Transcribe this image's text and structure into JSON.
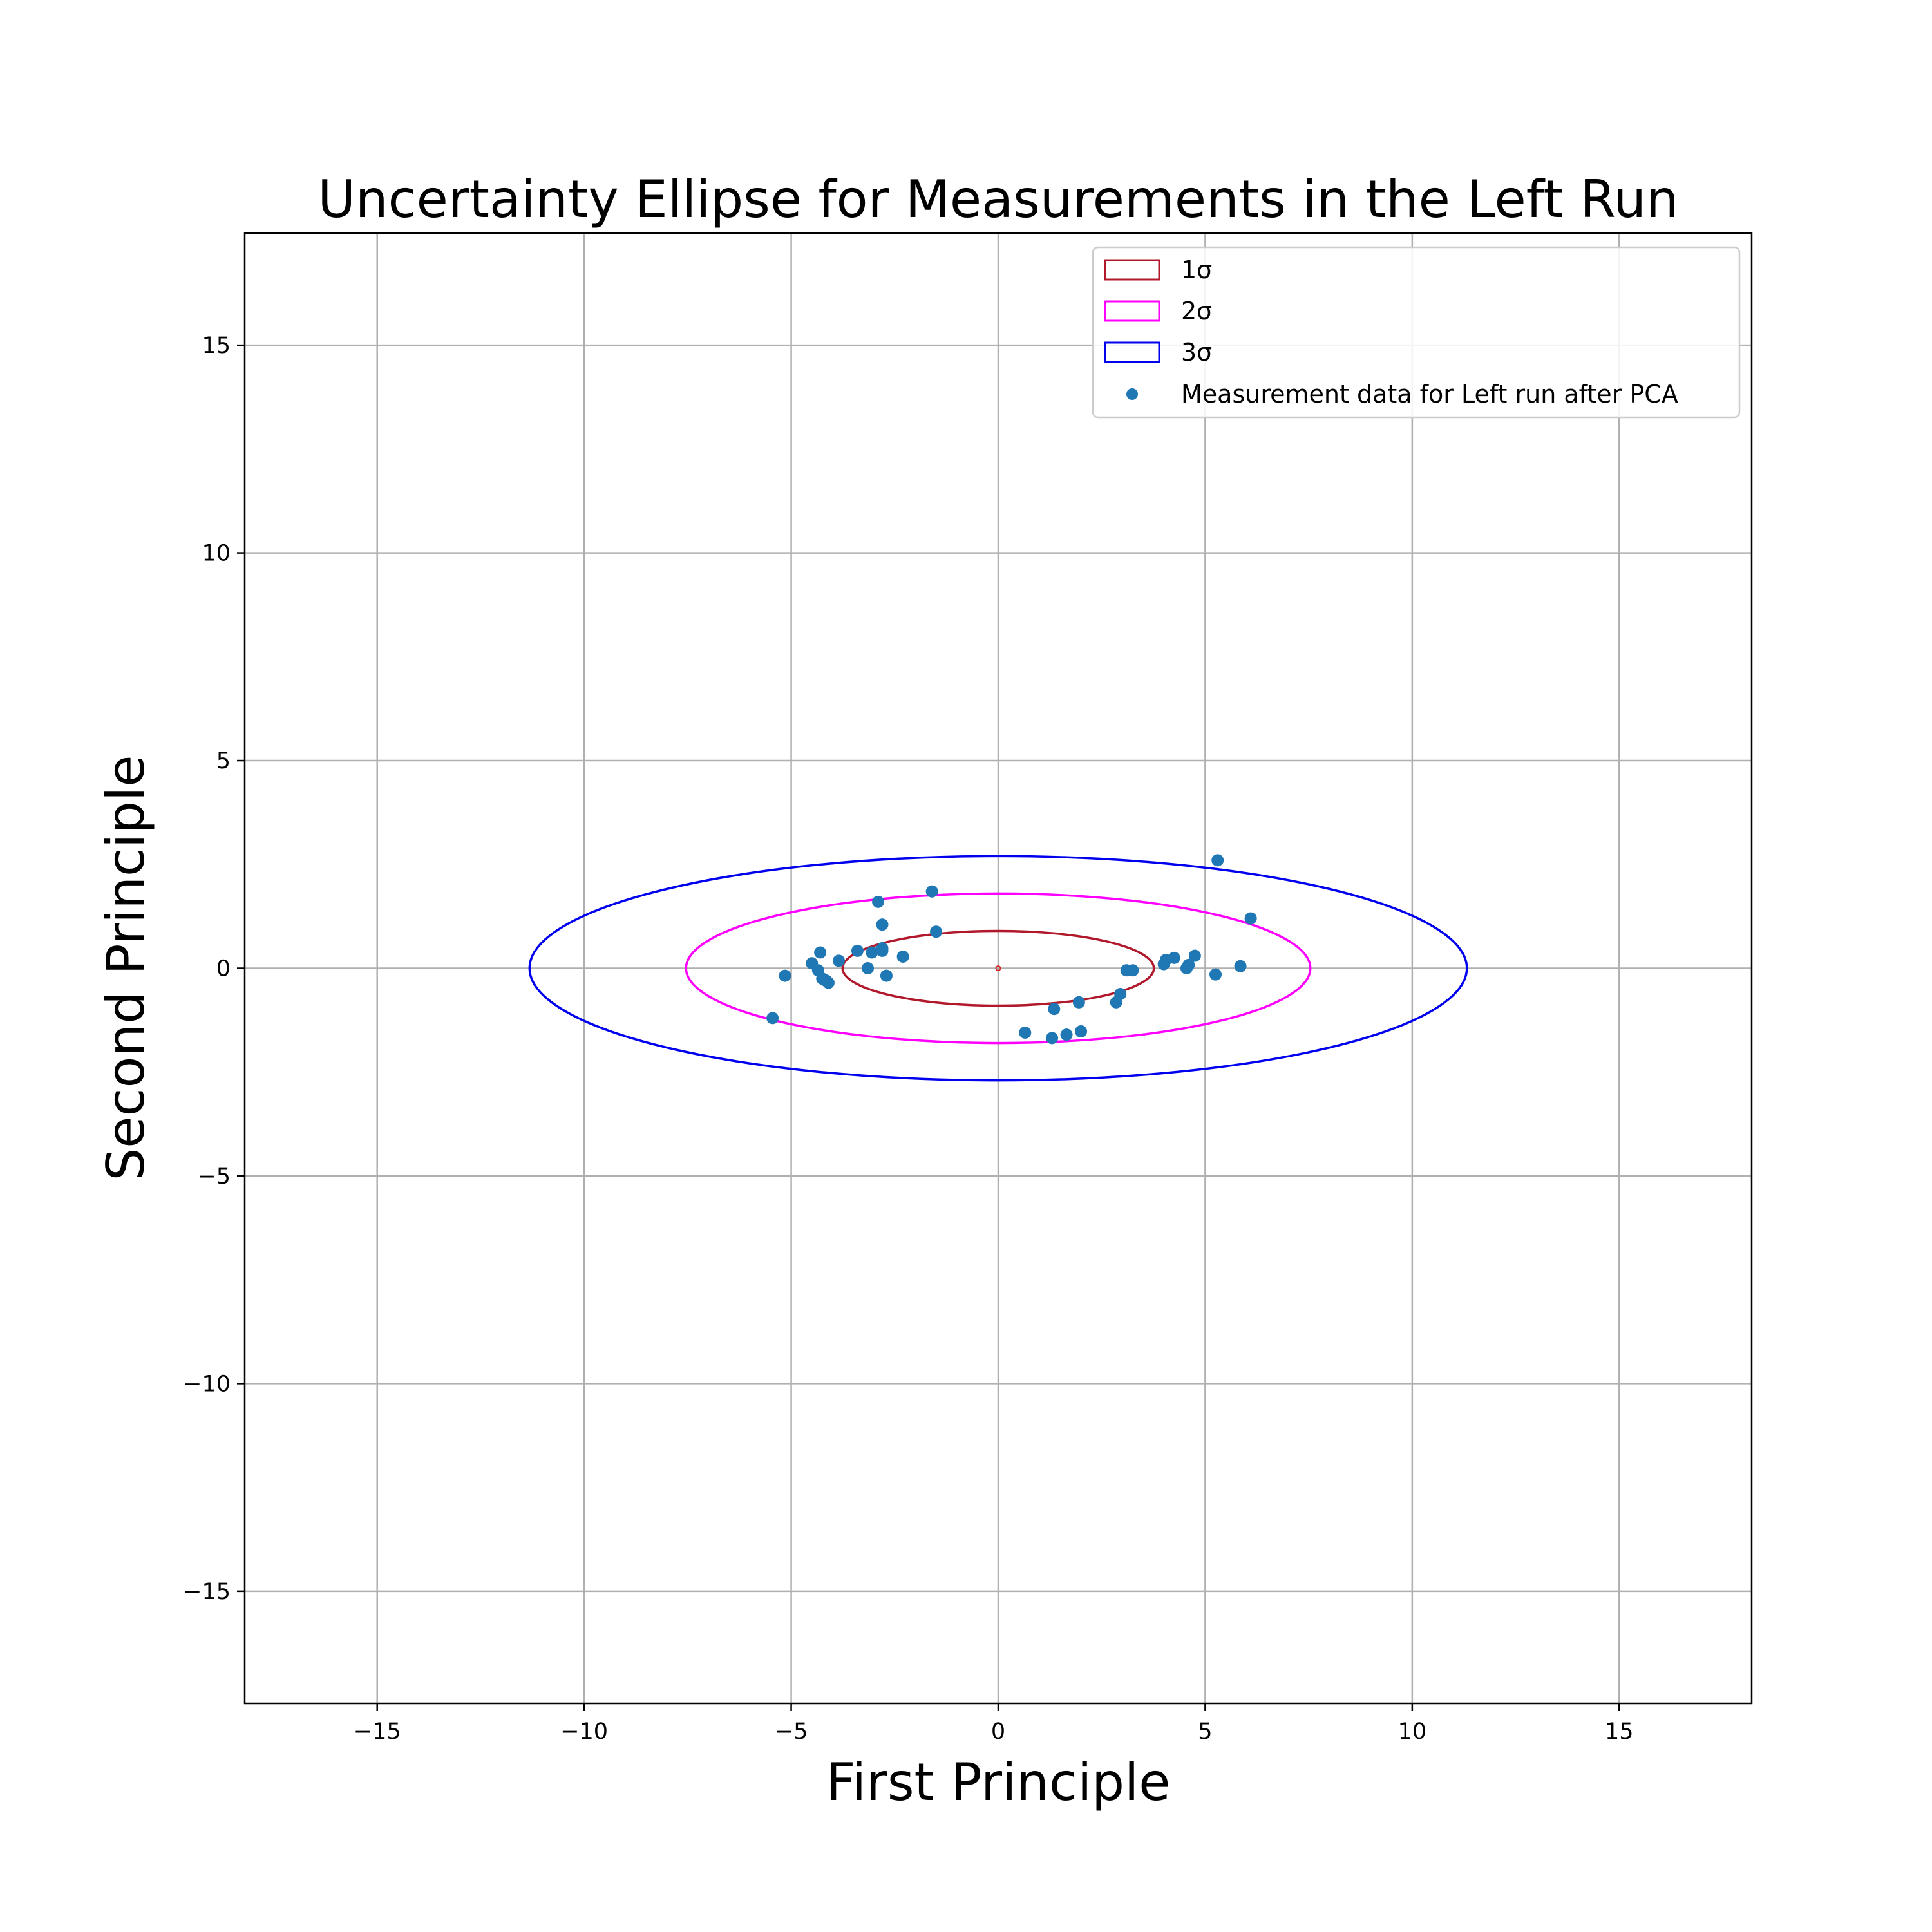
{
  "chart_data": {
    "type": "scatter",
    "title": "Uncertainty Ellipse for Measurements in the Left Run",
    "xlabel": "First Principle",
    "ylabel": "Second Principle",
    "xlim": [
      -18.2,
      18.2
    ],
    "ylim": [
      -17.7,
      17.7
    ],
    "x_ticks": [
      -15,
      -10,
      -5,
      0,
      5,
      10,
      15
    ],
    "y_ticks": [
      -15,
      -10,
      -5,
      0,
      5,
      10,
      15
    ],
    "x_tick_labels": [
      "−15",
      "−10",
      "−5",
      "0",
      "5",
      "10",
      "15"
    ],
    "y_tick_labels": [
      "−15",
      "−10",
      "−5",
      "0",
      "5",
      "10",
      "15"
    ],
    "grid": true,
    "legend_position": "upper right",
    "ellipses": [
      {
        "label": "1σ",
        "center": [
          0,
          0
        ],
        "semi_axis_x": 3.76,
        "semi_axis_y": 0.9,
        "color": "#b2182b"
      },
      {
        "label": "2σ",
        "center": [
          0,
          0
        ],
        "semi_axis_x": 7.54,
        "semi_axis_y": 1.8,
        "color": "#ff00ff"
      },
      {
        "label": "3σ",
        "center": [
          0,
          0
        ],
        "semi_axis_x": 11.32,
        "semi_axis_y": 2.7,
        "color": "#0000ee"
      }
    ],
    "center_marker": {
      "x": 0,
      "y": 0,
      "color": "#d62728"
    },
    "series": [
      {
        "name": "Measurement data for Left run after PCA",
        "color": "#1f77b4",
        "points": [
          [
            5.3,
            2.6
          ],
          [
            -1.6,
            1.85
          ],
          [
            -2.9,
            1.6
          ],
          [
            6.1,
            1.2
          ],
          [
            -2.8,
            1.05
          ],
          [
            -1.5,
            0.88
          ],
          [
            -2.8,
            0.48
          ],
          [
            -3.4,
            0.42
          ],
          [
            -3.05,
            0.38
          ],
          [
            -2.8,
            0.42
          ],
          [
            -4.3,
            0.38
          ],
          [
            -2.3,
            0.28
          ],
          [
            -3.85,
            0.18
          ],
          [
            -4.5,
            0.12
          ],
          [
            4.75,
            0.3
          ],
          [
            4.25,
            0.25
          ],
          [
            4.05,
            0.2
          ],
          [
            4.0,
            0.1
          ],
          [
            4.6,
            0.08
          ],
          [
            4.55,
            0.0
          ],
          [
            5.85,
            0.05
          ],
          [
            -3.15,
            0.0
          ],
          [
            -4.35,
            -0.05
          ],
          [
            3.1,
            -0.05
          ],
          [
            3.25,
            -0.05
          ],
          [
            -5.15,
            -0.18
          ],
          [
            -4.25,
            -0.25
          ],
          [
            -4.15,
            -0.3
          ],
          [
            -4.2,
            -0.28
          ],
          [
            -4.1,
            -0.35
          ],
          [
            -2.7,
            -0.18
          ],
          [
            5.25,
            -0.15
          ],
          [
            2.95,
            -0.62
          ],
          [
            2.85,
            -0.82
          ],
          [
            1.95,
            -0.82
          ],
          [
            1.35,
            -0.98
          ],
          [
            -5.45,
            -1.2
          ],
          [
            0.65,
            -1.55
          ],
          [
            1.3,
            -1.68
          ],
          [
            1.65,
            -1.6
          ],
          [
            2.0,
            -1.52
          ]
        ]
      }
    ]
  }
}
